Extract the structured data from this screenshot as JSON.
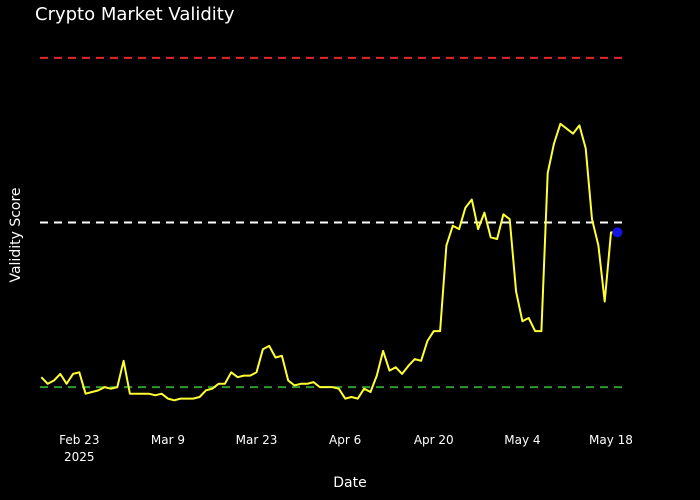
{
  "chart_data": {
    "type": "line",
    "title": "Crypto Market Validity",
    "xlabel": "Date",
    "ylabel": "Validity Score",
    "x_axis": {
      "kind": "date",
      "range": [
        "2025-02-16",
        "2025-05-21"
      ],
      "ticks": [
        {
          "date": "2025-02-23",
          "label": "Feb 23",
          "sublabel": "2025"
        },
        {
          "date": "2025-03-09",
          "label": "Mar 9",
          "sublabel": ""
        },
        {
          "date": "2025-03-23",
          "label": "Mar 23",
          "sublabel": ""
        },
        {
          "date": "2025-04-06",
          "label": "Apr 6",
          "sublabel": ""
        },
        {
          "date": "2025-04-20",
          "label": "Apr 20",
          "sublabel": ""
        },
        {
          "date": "2025-05-04",
          "label": "May 4",
          "sublabel": ""
        },
        {
          "date": "2025-05-18",
          "label": "May 18",
          "sublabel": ""
        }
      ]
    },
    "y_axis": {
      "range": [
        -0.1,
        1.1
      ],
      "show_ticks": false
    },
    "grid": false,
    "reference_lines": [
      {
        "value": 1.0,
        "color": "#e8262a",
        "dash": true
      },
      {
        "value": 0.5,
        "color": "#ffffff",
        "dash": true
      },
      {
        "value": 0.0,
        "color": "#2f9a2f",
        "dash": true
      }
    ],
    "series": [
      {
        "color": "#ffff33",
        "x": [
          "2025-02-17",
          "2025-02-18",
          "2025-02-19",
          "2025-02-20",
          "2025-02-21",
          "2025-02-22",
          "2025-02-23",
          "2025-02-24",
          "2025-02-25",
          "2025-02-26",
          "2025-02-27",
          "2025-02-28",
          "2025-03-01",
          "2025-03-02",
          "2025-03-03",
          "2025-03-04",
          "2025-03-05",
          "2025-03-06",
          "2025-03-07",
          "2025-03-08",
          "2025-03-09",
          "2025-03-10",
          "2025-03-11",
          "2025-03-12",
          "2025-03-13",
          "2025-03-14",
          "2025-03-15",
          "2025-03-16",
          "2025-03-17",
          "2025-03-18",
          "2025-03-19",
          "2025-03-20",
          "2025-03-21",
          "2025-03-22",
          "2025-03-23",
          "2025-03-24",
          "2025-03-25",
          "2025-03-26",
          "2025-03-27",
          "2025-03-28",
          "2025-03-29",
          "2025-03-30",
          "2025-03-31",
          "2025-04-01",
          "2025-04-02",
          "2025-04-03",
          "2025-04-04",
          "2025-04-05",
          "2025-04-06",
          "2025-04-07",
          "2025-04-08",
          "2025-04-09",
          "2025-04-10",
          "2025-04-11",
          "2025-04-12",
          "2025-04-13",
          "2025-04-14",
          "2025-04-15",
          "2025-04-16",
          "2025-04-17",
          "2025-04-18",
          "2025-04-19",
          "2025-04-20",
          "2025-04-21",
          "2025-04-22",
          "2025-04-23",
          "2025-04-24",
          "2025-04-25",
          "2025-04-26",
          "2025-04-27",
          "2025-04-28",
          "2025-04-29",
          "2025-04-30",
          "2025-05-01",
          "2025-05-02",
          "2025-05-03",
          "2025-05-04",
          "2025-05-05",
          "2025-05-06",
          "2025-05-07",
          "2025-05-08",
          "2025-05-09",
          "2025-05-10",
          "2025-05-11",
          "2025-05-12",
          "2025-05-13",
          "2025-05-14",
          "2025-05-15",
          "2025-05-16",
          "2025-05-17",
          "2025-05-18",
          "2025-05-19"
        ],
        "y": [
          0.03,
          0.01,
          0.02,
          0.04,
          0.01,
          0.04,
          0.045,
          -0.02,
          -0.015,
          -0.01,
          0.0,
          -0.005,
          0.0,
          0.08,
          -0.02,
          -0.02,
          -0.02,
          -0.02,
          -0.025,
          -0.02,
          -0.035,
          -0.04,
          -0.035,
          -0.035,
          -0.035,
          -0.03,
          -0.01,
          -0.005,
          0.01,
          0.01,
          0.045,
          0.03,
          0.035,
          0.035,
          0.045,
          0.115,
          0.125,
          0.09,
          0.095,
          0.02,
          0.005,
          0.01,
          0.01,
          0.015,
          0.0,
          0.0,
          0.0,
          -0.005,
          -0.035,
          -0.03,
          -0.035,
          -0.005,
          -0.015,
          0.035,
          0.11,
          0.05,
          0.06,
          0.04,
          0.065,
          0.085,
          0.08,
          0.14,
          0.17,
          0.17,
          0.43,
          0.49,
          0.48,
          0.545,
          0.57,
          0.48,
          0.53,
          0.455,
          0.45,
          0.525,
          0.51,
          0.29,
          0.2,
          0.21,
          0.17,
          0.17,
          0.65,
          0.74,
          0.8,
          0.785,
          0.77,
          0.795,
          0.725,
          0.51,
          0.43,
          0.26,
          0.47,
          0.47
        ]
      }
    ],
    "highlight_point": {
      "x": "2025-05-19",
      "y": 0.47,
      "color": "#1414e6"
    }
  }
}
